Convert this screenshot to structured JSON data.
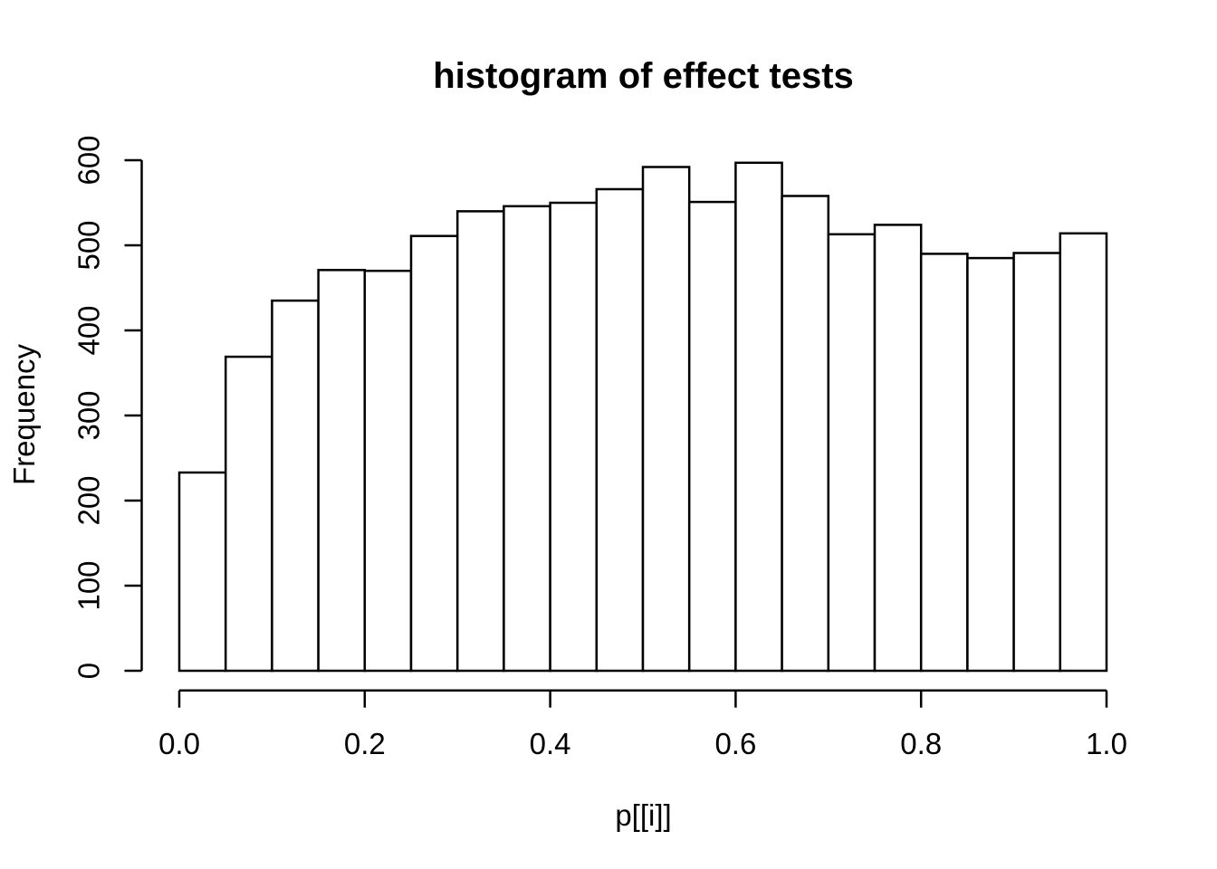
{
  "chart_data": {
    "type": "bar",
    "subtype": "histogram",
    "title": "histogram of effect tests",
    "xlabel": "p[[i]]",
    "ylabel": "Frequency",
    "xlim": [
      0.0,
      1.0
    ],
    "ylim": [
      0,
      600
    ],
    "bin_width": 0.05,
    "bin_edges": [
      0.0,
      0.05,
      0.1,
      0.15,
      0.2,
      0.25,
      0.3,
      0.35,
      0.4,
      0.45,
      0.5,
      0.55,
      0.6,
      0.65,
      0.7,
      0.75,
      0.8,
      0.85,
      0.9,
      0.95,
      1.0
    ],
    "counts": [
      233,
      369,
      435,
      471,
      470,
      511,
      540,
      546,
      550,
      566,
      592,
      551,
      597,
      558,
      513,
      524,
      490,
      485,
      491,
      514
    ],
    "x_tick_values": [
      0.0,
      0.2,
      0.4,
      0.6,
      0.8,
      1.0
    ],
    "x_tick_labels": [
      "0.0",
      "0.2",
      "0.4",
      "0.6",
      "0.8",
      "1.0"
    ],
    "y_tick_values": [
      0,
      100,
      200,
      300,
      400,
      500,
      600
    ],
    "y_tick_labels": [
      "0",
      "100",
      "200",
      "300",
      "400",
      "500",
      "600"
    ],
    "grid": "off",
    "legend": "none",
    "bar_fill": "#ffffff",
    "bar_stroke": "#000000",
    "axis_color": "#000000",
    "text_color": "#000000",
    "background": "#ffffff"
  }
}
